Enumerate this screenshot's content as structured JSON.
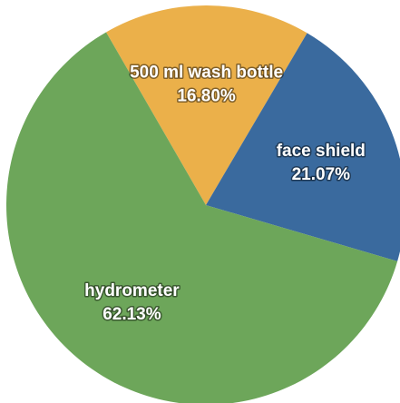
{
  "chart_data": {
    "type": "pie",
    "title": "",
    "slices": [
      {
        "label": "500 ml wash bottle",
        "value": 16.8,
        "value_label": "16.80%",
        "color": "#EBB04A"
      },
      {
        "label": "face shield",
        "value": 21.07,
        "value_label": "21.07%",
        "color": "#3A6A9E"
      },
      {
        "label": "hydrometer",
        "value": 62.13,
        "value_label": "62.13%",
        "color": "#6DA65A"
      }
    ],
    "start_angle_deg": -30,
    "direction": "clockwise",
    "legend": "none"
  }
}
